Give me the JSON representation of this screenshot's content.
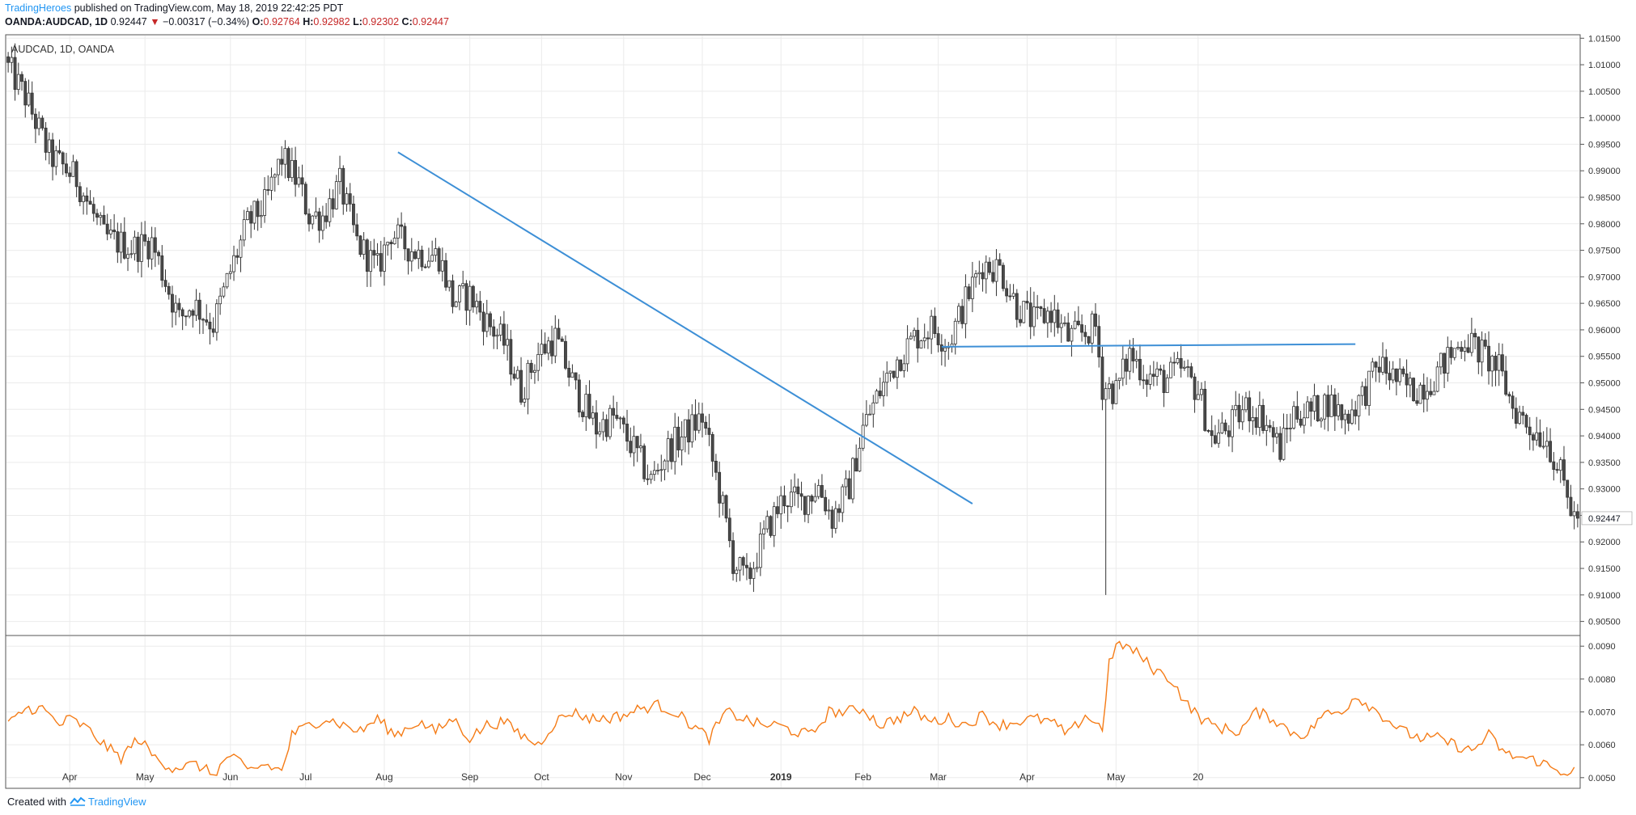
{
  "header": {
    "author": "TradingHeroes",
    "published_text": "published on TradingView.com, May 18, 2019 22:42:25 PDT",
    "symbol": "OANDA:AUDCAD, 1D",
    "last": "0.92447",
    "change": "−0.00317 (−0.34%)",
    "down_arrow": "▼",
    "o_label": "O:",
    "o_value": "0.92764",
    "h_label": "H:",
    "h_value": "0.92982",
    "l_label": "L:",
    "l_value": "0.92302",
    "c_label": "C:",
    "c_value": "0.92447"
  },
  "pane_label": "AUDCAD, 1D, OANDA",
  "footer": {
    "created_with": "Created with",
    "brand": "TradingView"
  },
  "colors": {
    "candle_body": "#4a4a4a",
    "trendline": "#3d8fd6",
    "indicator": "#f57c17",
    "grid": "#ebebeb",
    "price_tag_bg": "#ffffff",
    "red_text": "#c62828",
    "link": "#2196f3"
  },
  "chart_data": [
    {
      "type": "candlestick",
      "symbol": "AUDCAD",
      "interval": "1D",
      "source": "OANDA",
      "x_tick_labels": [
        "Apr",
        "May",
        "Jun",
        "Jul",
        "Aug",
        "Sep",
        "Oct",
        "Nov",
        "Dec",
        "2019",
        "Feb",
        "Mar",
        "Apr",
        "May",
        "20"
      ],
      "ylim": [
        0.9025,
        1.0155
      ],
      "y_ticks": [
        0.905,
        0.91,
        0.915,
        0.92,
        0.925,
        0.93,
        0.935,
        0.94,
        0.945,
        0.95,
        0.955,
        0.96,
        0.965,
        0.97,
        0.975,
        0.98,
        0.985,
        0.99,
        0.995,
        1.0,
        1.005,
        1.01,
        1.015
      ],
      "y_tick_labels": [
        "0.90500",
        "0.91000",
        "0.91500",
        "0.92000",
        "0.92500",
        "0.93000",
        "0.93500",
        "0.94000",
        "0.94500",
        "0.95000",
        "0.95500",
        "0.96000",
        "0.96500",
        "0.97000",
        "0.97500",
        "0.98000",
        "0.98500",
        "0.99000",
        "0.99500",
        "1.00000",
        "1.00500",
        "1.01000",
        "1.01500"
      ],
      "last_price": 0.92447,
      "last_price_label": "0.92447",
      "close_path": [
        [
          0,
          1.0095
        ],
        [
          5,
          1.004
        ],
        [
          12,
          0.993
        ],
        [
          20,
          0.9885
        ],
        [
          28,
          0.9775
        ],
        [
          36,
          0.9755
        ],
        [
          42,
          0.9765
        ],
        [
          50,
          0.962
        ],
        [
          54,
          0.965
        ],
        [
          60,
          0.961
        ],
        [
          65,
          0.971
        ],
        [
          70,
          0.98
        ],
        [
          75,
          0.9835
        ],
        [
          80,
          0.9925
        ],
        [
          85,
          0.9875
        ],
        [
          88,
          0.9815
        ],
        [
          92,
          0.9815
        ],
        [
          97,
          0.9875
        ],
        [
          102,
          0.9765
        ],
        [
          108,
          0.9715
        ],
        [
          112,
          0.9785
        ],
        [
          116,
          0.976
        ],
        [
          120,
          0.9745
        ],
        [
          126,
          0.974
        ],
        [
          130,
          0.9655
        ],
        [
          135,
          0.9665
        ],
        [
          140,
          0.9615
        ],
        [
          145,
          0.9575
        ],
        [
          150,
          0.9485
        ],
        [
          155,
          0.9555
        ],
        [
          160,
          0.9585
        ],
        [
          166,
          0.9485
        ],
        [
          172,
          0.9415
        ],
        [
          177,
          0.9435
        ],
        [
          183,
          0.9375
        ],
        [
          188,
          0.9315
        ],
        [
          193,
          0.9375
        ],
        [
          198,
          0.9405
        ],
        [
          203,
          0.9435
        ],
        [
          208,
          0.9295
        ],
        [
          212,
          0.9165
        ],
        [
          216,
          0.9125
        ],
        [
          222,
          0.9225
        ],
        [
          227,
          0.9285
        ],
        [
          232,
          0.9275
        ],
        [
          237,
          0.9305
        ],
        [
          241,
          0.9245
        ],
        [
          246,
          0.9305
        ],
        [
          250,
          0.9415
        ],
        [
          255,
          0.9485
        ],
        [
          260,
          0.9545
        ],
        [
          265,
          0.9585
        ],
        [
          270,
          0.9605
        ],
        [
          275,
          0.9575
        ],
        [
          280,
          0.9655
        ],
        [
          285,
          0.9725
        ],
        [
          290,
          0.9715
        ],
        [
          295,
          0.9645
        ],
        [
          300,
          0.9615
        ],
        [
          305,
          0.9635
        ],
        [
          310,
          0.9585
        ],
        [
          315,
          0.9595
        ],
        [
          318,
          0.9605
        ],
        [
          320,
          0.9495
        ],
        [
          324,
          0.9485
        ],
        [
          328,
          0.9555
        ],
        [
          333,
          0.9515
        ],
        [
          338,
          0.9505
        ],
        [
          343,
          0.9525
        ],
        [
          348,
          0.9485
        ],
        [
          352,
          0.9395
        ],
        [
          357,
          0.9415
        ],
        [
          362,
          0.9455
        ],
        [
          367,
          0.9435
        ],
        [
          372,
          0.9375
        ],
        [
          376,
          0.9445
        ],
        [
          381,
          0.9445
        ],
        [
          386,
          0.9465
        ],
        [
          391,
          0.9435
        ],
        [
          396,
          0.9475
        ],
        [
          401,
          0.9535
        ],
        [
          406,
          0.9505
        ],
        [
          411,
          0.9485
        ],
        [
          416,
          0.9505
        ],
        [
          421,
          0.9545
        ],
        [
          426,
          0.9585
        ],
        [
          431,
          0.9555
        ],
        [
          436,
          0.9525
        ],
        [
          440,
          0.9455
        ],
        [
          445,
          0.9415
        ],
        [
          450,
          0.9395
        ],
        [
          454,
          0.9325
        ],
        [
          458,
          0.9245
        ]
      ],
      "trendlines": [
        {
          "x1": 114,
          "y1": 0.9935,
          "x2": 282,
          "y2": 0.9272
        },
        {
          "x1": 273,
          "y1": 0.9568,
          "x2": 394,
          "y2": 0.9573
        }
      ],
      "grid": true
    },
    {
      "type": "line",
      "series": [
        {
          "values": [
            [
              0,
              0.0066
            ],
            [
              5,
              0.0071
            ],
            [
              10,
              0.0071
            ],
            [
              15,
              0.0066
            ],
            [
              18,
              0.0068
            ],
            [
              23,
              0.0065
            ],
            [
              28,
              0.006
            ],
            [
              33,
              0.0056
            ],
            [
              38,
              0.0062
            ],
            [
              43,
              0.0056
            ],
            [
              48,
              0.0053
            ],
            [
              55,
              0.0054
            ],
            [
              60,
              0.0051
            ],
            [
              65,
              0.0057
            ],
            [
              70,
              0.0052
            ],
            [
              75,
              0.0054
            ],
            [
              80,
              0.0052
            ],
            [
              83,
              0.0063
            ],
            [
              88,
              0.0066
            ],
            [
              93,
              0.0068
            ],
            [
              98,
              0.0066
            ],
            [
              103,
              0.0064
            ],
            [
              108,
              0.0068
            ],
            [
              113,
              0.0063
            ],
            [
              120,
              0.0067
            ],
            [
              125,
              0.0064
            ],
            [
              130,
              0.0068
            ],
            [
              135,
              0.0062
            ],
            [
              140,
              0.0066
            ],
            [
              145,
              0.0067
            ],
            [
              150,
              0.0063
            ],
            [
              155,
              0.006
            ],
            [
              160,
              0.0067
            ],
            [
              165,
              0.007
            ],
            [
              170,
              0.0068
            ],
            [
              175,
              0.0068
            ],
            [
              180,
              0.0069
            ],
            [
              185,
              0.0071
            ],
            [
              190,
              0.0072
            ],
            [
              195,
              0.007
            ],
            [
              200,
              0.0066
            ],
            [
              205,
              0.0062
            ],
            [
              210,
              0.007
            ],
            [
              215,
              0.0068
            ],
            [
              220,
              0.0066
            ],
            [
              225,
              0.0066
            ],
            [
              230,
              0.0064
            ],
            [
              235,
              0.0063
            ],
            [
              240,
              0.007
            ],
            [
              245,
              0.007
            ],
            [
              250,
              0.0071
            ],
            [
              255,
              0.0066
            ],
            [
              260,
              0.0068
            ],
            [
              265,
              0.007
            ],
            [
              270,
              0.0067
            ],
            [
              275,
              0.0068
            ],
            [
              280,
              0.0066
            ],
            [
              285,
              0.0069
            ],
            [
              290,
              0.0066
            ],
            [
              295,
              0.0067
            ],
            [
              300,
              0.0068
            ],
            [
              305,
              0.0067
            ],
            [
              310,
              0.0063
            ],
            [
              315,
              0.0069
            ],
            [
              320,
              0.0065
            ],
            [
              322,
              0.0085
            ],
            [
              325,
              0.0091
            ],
            [
              330,
              0.0088
            ],
            [
              335,
              0.0083
            ],
            [
              340,
              0.008
            ],
            [
              345,
              0.0072
            ],
            [
              350,
              0.0067
            ],
            [
              355,
              0.0065
            ],
            [
              360,
              0.0064
            ],
            [
              365,
              0.007
            ],
            [
              370,
              0.0068
            ],
            [
              375,
              0.0064
            ],
            [
              380,
              0.0063
            ],
            [
              384,
              0.0069
            ],
            [
              390,
              0.007
            ],
            [
              394,
              0.0075
            ],
            [
              398,
              0.0072
            ],
            [
              403,
              0.0068
            ],
            [
              408,
              0.0064
            ],
            [
              413,
              0.0062
            ],
            [
              418,
              0.0062
            ],
            [
              423,
              0.006
            ],
            [
              428,
              0.0058
            ],
            [
              433,
              0.0063
            ],
            [
              438,
              0.0057
            ],
            [
              443,
              0.0056
            ],
            [
              448,
              0.0055
            ],
            [
              453,
              0.0052
            ],
            [
              458,
              0.0052
            ]
          ]
        }
      ],
      "y_ticks": [
        0.005,
        0.006,
        0.007,
        0.008,
        0.009
      ],
      "y_tick_labels": [
        "0.0050",
        "0.0060",
        "0.0070",
        "0.0080",
        "0.0090"
      ],
      "ylim": [
        0.0047,
        0.0093
      ]
    }
  ]
}
